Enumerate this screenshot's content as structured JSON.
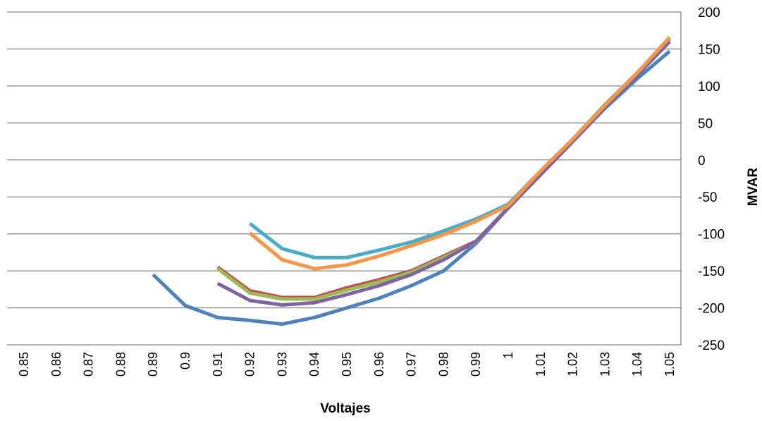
{
  "chart_data": {
    "type": "line",
    "title": "",
    "xlabel": "Voltajes",
    "ylabel": "MVAR",
    "ylim": [
      -250,
      200
    ],
    "y_ticks": [
      "200",
      "150",
      "100",
      "50",
      "0",
      "-50",
      "-100",
      "-150",
      "-200",
      "-250"
    ],
    "y_tick_values": [
      200,
      150,
      100,
      50,
      0,
      -50,
      -100,
      -150,
      -200,
      -250
    ],
    "y_axis_position": "right",
    "grid": true,
    "legend": "none",
    "categories": [
      "0.85",
      "0.86",
      "0.87",
      "0.88",
      "0.89",
      "0.9",
      "0.91",
      "0.92",
      "0.93",
      "0.94",
      "0.95",
      "0.96",
      "0.97",
      "0.98",
      "0.99",
      "1",
      "1.01",
      "1.02",
      "1.03",
      "1.04",
      "1.05"
    ],
    "series": [
      {
        "color": "#4F81BD",
        "values": [
          null,
          null,
          null,
          null,
          -155,
          -197,
          -213,
          -217,
          -222,
          -213,
          -200,
          -187,
          -170,
          -150,
          -113,
          -65,
          -20,
          25,
          70,
          110,
          147
        ]
      },
      {
        "color": "#C0504D",
        "values": [
          null,
          null,
          null,
          null,
          null,
          null,
          -145,
          -177,
          -186,
          -186,
          -173,
          -162,
          -150,
          -130,
          -110,
          -65,
          -17,
          27,
          73,
          117,
          163
        ]
      },
      {
        "color": "#9BBB59",
        "values": [
          null,
          null,
          null,
          null,
          null,
          null,
          -147,
          -180,
          -188,
          -188,
          -176,
          -165,
          -152,
          -132,
          -111,
          -64,
          -17,
          27,
          73,
          117,
          163
        ]
      },
      {
        "color": "#8064A2",
        "values": [
          null,
          null,
          null,
          null,
          null,
          null,
          -167,
          -190,
          -196,
          -193,
          -182,
          -170,
          -155,
          -135,
          -110,
          -65,
          -20,
          25,
          72,
          115,
          160
        ]
      },
      {
        "color": "#4BACC6",
        "values": [
          null,
          null,
          null,
          null,
          null,
          null,
          null,
          -86,
          -120,
          -132,
          -132,
          -122,
          -111,
          -96,
          -80,
          -60,
          -15,
          28,
          75,
          118,
          165
        ]
      },
      {
        "color": "#F79646",
        "values": [
          null,
          null,
          null,
          null,
          null,
          null,
          null,
          -99,
          -135,
          -147,
          -142,
          -130,
          -116,
          -101,
          -83,
          -62,
          -15,
          28,
          74,
          118,
          166
        ]
      }
    ]
  }
}
